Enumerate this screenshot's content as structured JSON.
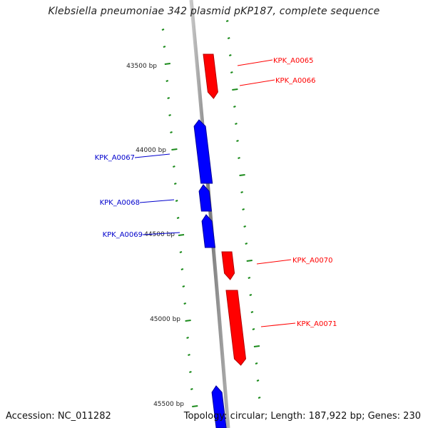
{
  "title": "Klebsiella pneumoniae 342 plasmid pKP187, complete sequence",
  "positions": [
    {
      "label": "43500 bp"
    },
    {
      "label": "44000 bp"
    },
    {
      "label": "44500 bp"
    },
    {
      "label": "45000 bp"
    },
    {
      "label": "45500 bp"
    }
  ],
  "genes": [
    {
      "id": "KPK_A0065",
      "strand": "+",
      "color": "#ff0000"
    },
    {
      "id": "KPK_A0066",
      "strand": "+",
      "color": "#ff0000"
    },
    {
      "id": "KPK_A0067",
      "strand": "-",
      "color": "#0000ff"
    },
    {
      "id": "KPK_A0068",
      "strand": "-",
      "color": "#0000ff"
    },
    {
      "id": "KPK_A0069",
      "strand": "-",
      "color": "#0000ff"
    },
    {
      "id": "KPK_A0070",
      "strand": "+",
      "color": "#ff0000"
    },
    {
      "id": "KPK_A0071",
      "strand": "+",
      "color": "#ff0000"
    }
  ],
  "footer": {
    "accession": "Accession: NC_011282",
    "summary": "Topology: circular; Length: 187,922 bp; Genes: 230"
  }
}
